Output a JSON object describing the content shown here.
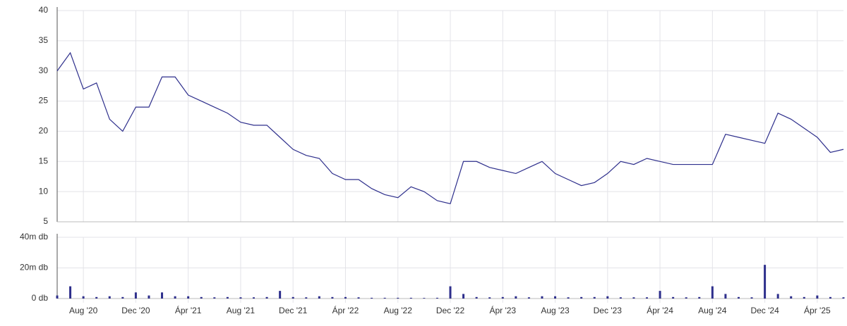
{
  "chart_data": [
    {
      "type": "line",
      "color": "#2e2f8c",
      "xlim": [
        "2020-06",
        "2025-06"
      ],
      "x": [
        "2020-06",
        "2020-07",
        "2020-08",
        "2020-09",
        "2020-10",
        "2020-11",
        "2020-12",
        "2021-01",
        "2021-02",
        "2021-03",
        "2021-04",
        "2021-05",
        "2021-06",
        "2021-07",
        "2021-08",
        "2021-09",
        "2021-10",
        "2021-11",
        "2021-12",
        "2022-01",
        "2022-02",
        "2022-03",
        "2022-04",
        "2022-05",
        "2022-06",
        "2022-07",
        "2022-08",
        "2022-09",
        "2022-10",
        "2022-11",
        "2022-12",
        "2023-01",
        "2023-02",
        "2023-03",
        "2023-04",
        "2023-05",
        "2023-06",
        "2023-07",
        "2023-08",
        "2023-09",
        "2023-10",
        "2023-11",
        "2023-12",
        "2024-01",
        "2024-02",
        "2024-03",
        "2024-04",
        "2024-05",
        "2024-06",
        "2024-07",
        "2024-08",
        "2024-09",
        "2024-10",
        "2024-11",
        "2024-12",
        "2025-01",
        "2025-02",
        "2025-03",
        "2025-04",
        "2025-05",
        "2025-06"
      ],
      "values": [
        30,
        33,
        27,
        28,
        22,
        20,
        24,
        24,
        29,
        29,
        26,
        25,
        24,
        23,
        21.5,
        21,
        21,
        19,
        17,
        16,
        15.5,
        13,
        12,
        12,
        10.5,
        9.5,
        9,
        10.8,
        10,
        8.5,
        8,
        15,
        15,
        14,
        13.5,
        13,
        14,
        15,
        13,
        12,
        11,
        11.5,
        13,
        15,
        14.5,
        15.5,
        15,
        14.5,
        14.5,
        14.5,
        14.5,
        19.5,
        19,
        18.5,
        18,
        23,
        22,
        20.5,
        19,
        16.5,
        17
      ],
      "ylim": [
        5,
        40
      ],
      "yticks": [
        5,
        10,
        15,
        20,
        25,
        30,
        35,
        40
      ],
      "grid": true
    },
    {
      "type": "bar",
      "color": "#2e2f8c",
      "xlim": [
        "2020-06",
        "2025-06"
      ],
      "x": [
        "2020-06",
        "2020-07",
        "2020-08",
        "2020-09",
        "2020-10",
        "2020-11",
        "2020-12",
        "2021-01",
        "2021-02",
        "2021-03",
        "2021-04",
        "2021-05",
        "2021-06",
        "2021-07",
        "2021-08",
        "2021-09",
        "2021-10",
        "2021-11",
        "2021-12",
        "2022-01",
        "2022-02",
        "2022-03",
        "2022-04",
        "2022-05",
        "2022-06",
        "2022-07",
        "2022-08",
        "2022-09",
        "2022-10",
        "2022-11",
        "2022-12",
        "2023-01",
        "2023-02",
        "2023-03",
        "2023-04",
        "2023-05",
        "2023-06",
        "2023-07",
        "2023-08",
        "2023-09",
        "2023-10",
        "2023-11",
        "2023-12",
        "2024-01",
        "2024-02",
        "2024-03",
        "2024-04",
        "2024-05",
        "2024-06",
        "2024-07",
        "2024-08",
        "2024-09",
        "2024-10",
        "2024-11",
        "2024-12",
        "2025-01",
        "2025-02",
        "2025-03",
        "2025-04",
        "2025-05",
        "2025-06"
      ],
      "values": [
        2000000,
        8000000,
        1500000,
        1000000,
        1500000,
        1000000,
        4000000,
        2000000,
        4000000,
        1500000,
        1500000,
        1000000,
        800000,
        1000000,
        800000,
        800000,
        1000000,
        5000000,
        1000000,
        800000,
        1500000,
        1000000,
        1000000,
        800000,
        500000,
        500000,
        500000,
        500000,
        400000,
        500000,
        8000000,
        3000000,
        1000000,
        800000,
        1000000,
        1500000,
        800000,
        1500000,
        1500000,
        800000,
        1000000,
        1000000,
        1500000,
        800000,
        800000,
        800000,
        5000000,
        1000000,
        800000,
        1000000,
        8000000,
        3000000,
        1000000,
        800000,
        22000000,
        3000000,
        1500000,
        1000000,
        2000000,
        1000000,
        800000
      ],
      "ylim": [
        0,
        40000000
      ],
      "yticks": [
        {
          "value": 0,
          "label": "0 db"
        },
        {
          "value": 20000000,
          "label": "20m db"
        },
        {
          "value": 40000000,
          "label": "40m db"
        }
      ],
      "xticks": [
        {
          "value": "2020-08",
          "label": "Aug '20"
        },
        {
          "value": "2020-12",
          "label": "Dec '20"
        },
        {
          "value": "2021-04",
          "label": "Ápr '21"
        },
        {
          "value": "2021-08",
          "label": "Aug '21"
        },
        {
          "value": "2021-12",
          "label": "Dec '21"
        },
        {
          "value": "2022-04",
          "label": "Ápr '22"
        },
        {
          "value": "2022-08",
          "label": "Aug '22"
        },
        {
          "value": "2022-12",
          "label": "Dec '22"
        },
        {
          "value": "2023-04",
          "label": "Ápr '23"
        },
        {
          "value": "2023-08",
          "label": "Aug '23"
        },
        {
          "value": "2023-12",
          "label": "Dec '23"
        },
        {
          "value": "2024-04",
          "label": "Ápr '24"
        },
        {
          "value": "2024-08",
          "label": "Aug '24"
        },
        {
          "value": "2024-12",
          "label": "Dec '24"
        },
        {
          "value": "2025-04",
          "label": "Ápr '25"
        }
      ],
      "grid": true
    }
  ]
}
